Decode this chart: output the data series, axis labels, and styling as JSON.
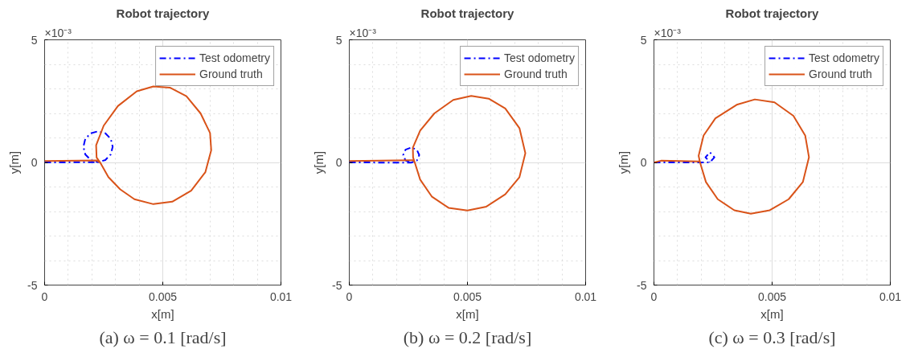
{
  "chart_data": [
    {
      "type": "line",
      "title": "Robot trajectory",
      "xlabel": "x[m]",
      "ylabel": "y[m]",
      "annotations": [
        "×10⁻³",
        "(a) ω = 0.1 [rad/s]"
      ],
      "xlim": [
        0,
        0.01
      ],
      "ylim": [
        -5,
        5
      ],
      "xticks": [
        0,
        0.005,
        0.01
      ],
      "yticks": [
        -5,
        0,
        5
      ],
      "grid": true,
      "legend": "top right",
      "series": [
        {
          "name": "Test odometry",
          "color": "#0000ff",
          "line_style": "dashed",
          "x": [
            0,
            0.00226,
            0.00257,
            0.0028,
            0.00288,
            0.0028,
            0.00257,
            0.00226,
            0.00195,
            0.00172,
            0.00164,
            0.00172,
            0.00195,
            0.00226
          ],
          "values": [
            0,
            0.01,
            0.1,
            0.33,
            0.64,
            0.96,
            1.19,
            1.27,
            1.19,
            0.96,
            0.64,
            0.33,
            0.1,
            0.01
          ]
        },
        {
          "name": "Ground truth",
          "color": "#d95319",
          "line_style": "solid",
          "x": [
            0,
            0.0022,
            0.00235,
            0.0027,
            0.0032,
            0.0038,
            0.0046,
            0.0054,
            0.0062,
            0.0068,
            0.00705,
            0.007,
            0.0066,
            0.006,
            0.0053,
            0.0046,
            0.0039,
            0.0031,
            0.0025,
            0.00218,
            0.0022,
            0.00235
          ],
          "values": [
            0.06,
            0.08,
            0.0,
            -0.6,
            -1.1,
            -1.5,
            -1.7,
            -1.6,
            -1.15,
            -0.4,
            0.5,
            1.2,
            2.0,
            2.7,
            3.05,
            3.1,
            2.9,
            2.3,
            1.5,
            0.7,
            0.2,
            0.0
          ]
        }
      ]
    },
    {
      "type": "line",
      "title": "Robot trajectory",
      "xlabel": "x[m]",
      "ylabel": "y[m]",
      "annotations": [
        "×10⁻³",
        "(b) ω = 0.2 [rad/s]"
      ],
      "xlim": [
        0,
        0.01
      ],
      "ylim": [
        -5,
        5
      ],
      "xticks": [
        0,
        0.005,
        0.01
      ],
      "yticks": [
        -5,
        0,
        5
      ],
      "grid": true,
      "legend": "top right",
      "series": [
        {
          "name": "Test odometry",
          "color": "#0000ff",
          "line_style": "dashed",
          "x": [
            0,
            0.00262,
            0.00286,
            0.00296,
            0.00286,
            0.00262,
            0.00238,
            0.00228,
            0.00238,
            0.00262
          ],
          "values": [
            0,
            -0.01,
            0.08,
            0.3,
            0.52,
            0.61,
            0.52,
            0.3,
            0.08,
            -0.01
          ]
        },
        {
          "name": "Ground truth",
          "color": "#d95319",
          "line_style": "solid",
          "x": [
            0,
            0.0027,
            0.00277,
            0.003,
            0.0035,
            0.0042,
            0.005,
            0.0058,
            0.0066,
            0.0072,
            0.00745,
            0.0072,
            0.0066,
            0.0059,
            0.00516,
            0.0044,
            0.0036,
            0.003,
            0.00269,
            0.0027,
            0.00277
          ],
          "values": [
            0.06,
            0.09,
            0.0,
            -0.7,
            -1.4,
            -1.85,
            -1.96,
            -1.8,
            -1.3,
            -0.6,
            0.38,
            1.4,
            2.2,
            2.6,
            2.71,
            2.55,
            2.0,
            1.3,
            0.6,
            0.2,
            0.0
          ]
        }
      ]
    },
    {
      "type": "line",
      "title": "Robot trajectory",
      "xlabel": "x[m]",
      "ylabel": "y[m]",
      "annotations": [
        "×10⁻³",
        "(c) ω = 0.3 [rad/s]"
      ],
      "xlim": [
        0,
        0.01
      ],
      "ylim": [
        -5,
        5
      ],
      "xticks": [
        0,
        0.005,
        0.01
      ],
      "yticks": [
        -5,
        0,
        5
      ],
      "grid": true,
      "legend": "top right",
      "series": [
        {
          "name": "Test odometry",
          "color": "#0000ff",
          "line_style": "dashed",
          "x": [
            0,
            0.00218,
            0.00237,
            0.00256,
            0.00237,
            0.00218,
            0.00237
          ],
          "values": [
            0,
            0.0,
            0.01,
            0.21,
            0.41,
            0.21,
            0.01
          ]
        },
        {
          "name": "Ground truth",
          "color": "#d95319",
          "line_style": "solid",
          "x": [
            0,
            0.0003,
            0.0019,
            0.00195,
            0.0022,
            0.0027,
            0.0034,
            0.0041,
            0.0049,
            0.0057,
            0.0063,
            0.00656,
            0.0064,
            0.0059,
            0.0051,
            0.00427,
            0.0035,
            0.0026,
            0.0021,
            0.00189,
            0.00195
          ],
          "values": [
            0.0,
            0.07,
            0.04,
            0.0,
            -0.8,
            -1.5,
            -1.95,
            -2.09,
            -1.95,
            -1.5,
            -0.8,
            0.21,
            1.1,
            1.9,
            2.45,
            2.57,
            2.35,
            1.8,
            1.1,
            0.27,
            0.0
          ]
        }
      ]
    }
  ]
}
